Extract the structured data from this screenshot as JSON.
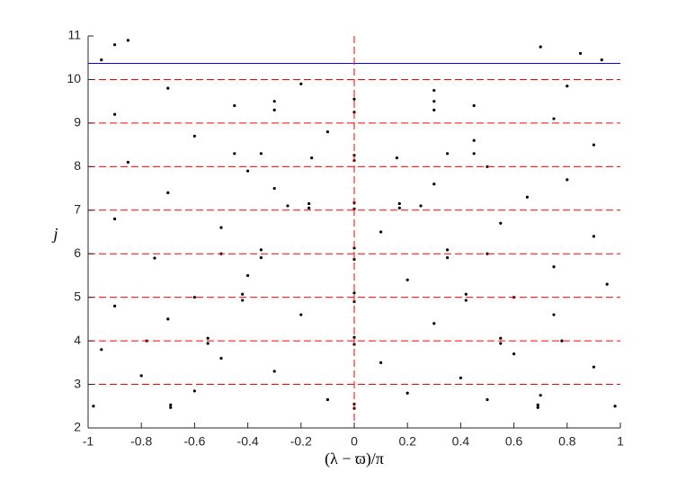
{
  "chart_data": {
    "type": "scatter",
    "xlabel": "(λ − ϖ)/π",
    "ylabel": "j",
    "xlim": [
      -1,
      1
    ],
    "ylim": [
      2,
      11
    ],
    "xticks": [
      -1,
      -0.8,
      -0.6,
      -0.4,
      -0.2,
      0,
      0.2,
      0.4,
      0.6,
      0.8,
      1
    ],
    "yticks": [
      2,
      3,
      4,
      5,
      6,
      7,
      8,
      9,
      10,
      11
    ],
    "grid": false,
    "series": [
      {
        "color": "#000000",
        "x": [
          -0.9,
          -0.85,
          0.7,
          0.85,
          -0.95,
          0.93,
          -0.7,
          -0.2,
          0.3,
          0.8,
          -0.9,
          0.75,
          -0.6,
          -0.1,
          0.45,
          0.9,
          -0.85,
          -0.4,
          0.5,
          0.8,
          -0.7,
          -0.3,
          0.3,
          0.65,
          -0.9,
          -0.5,
          0.1,
          0.55,
          0.9,
          -0.75,
          0.75,
          -0.4,
          0.2,
          0.95,
          -0.9,
          -0.7,
          0.75,
          0.3,
          -0.2,
          -0.95,
          -0.5,
          0.1,
          0.6,
          0.9,
          -0.8,
          -0.3,
          0.4,
          -0.6,
          0.2,
          0.7,
          -0.1,
          0.5,
          -0.98,
          0.98,
          0,
          0,
          -0.69,
          0.69,
          -0.69,
          0.69,
          -0.78,
          0.78,
          0,
          0,
          -0.55,
          0.55,
          -0.55,
          0.55,
          -0.6,
          0.6,
          0,
          0,
          -0.42,
          0.42,
          -0.42,
          0.42,
          -0.5,
          0.5,
          0,
          0,
          -0.35,
          0.35,
          -0.35,
          0.35,
          -0.25,
          0.25,
          0,
          0,
          -0.17,
          0.17,
          -0.17,
          0.17,
          -0.16,
          0.16,
          0,
          0,
          -0.35,
          0.35,
          -0.45,
          0.45,
          -0.45,
          0.45,
          0,
          0,
          -0.3,
          0.3,
          -0.3,
          0.3
        ],
        "y": [
          10.8,
          10.9,
          10.75,
          10.6,
          10.45,
          10.45,
          9.8,
          9.9,
          9.75,
          9.85,
          9.2,
          9.1,
          8.7,
          8.8,
          8.6,
          8.5,
          8.1,
          7.9,
          8.0,
          7.7,
          7.4,
          7.5,
          7.6,
          7.3,
          6.8,
          6.6,
          6.5,
          6.7,
          6.4,
          5.9,
          5.7,
          5.5,
          5.4,
          5.3,
          4.8,
          4.5,
          4.6,
          4.4,
          4.6,
          3.8,
          3.6,
          3.5,
          3.7,
          3.4,
          3.2,
          3.3,
          3.15,
          2.85,
          2.8,
          2.75,
          2.65,
          2.65,
          2.5,
          2.5,
          2.55,
          2.45,
          2.53,
          2.53,
          2.47,
          2.47,
          4.0,
          4.0,
          4.08,
          3.92,
          4.06,
          4.06,
          3.94,
          3.94,
          5.0,
          5.0,
          5.1,
          4.9,
          5.07,
          5.07,
          4.93,
          4.93,
          6.0,
          6.0,
          6.13,
          5.87,
          6.09,
          6.09,
          5.91,
          5.91,
          7.1,
          7.1,
          7.17,
          7.03,
          7.15,
          7.15,
          7.05,
          7.05,
          8.2,
          8.2,
          8.26,
          8.14,
          8.3,
          8.3,
          8.3,
          8.3,
          9.4,
          9.4,
          9.55,
          9.25,
          9.5,
          9.5,
          9.3,
          9.3
        ]
      }
    ],
    "reference_lines": [
      {
        "axis": "y",
        "value": 10.37,
        "color": "#0000ff",
        "style": "solid"
      },
      {
        "axis": "y",
        "value": 3,
        "color": "#ff0000",
        "style": "dashed"
      },
      {
        "axis": "y",
        "value": 4,
        "color": "#ff0000",
        "style": "dashed"
      },
      {
        "axis": "y",
        "value": 5,
        "color": "#ff0000",
        "style": "dashed"
      },
      {
        "axis": "y",
        "value": 6,
        "color": "#ff0000",
        "style": "dashed"
      },
      {
        "axis": "y",
        "value": 7,
        "color": "#ff0000",
        "style": "dashed"
      },
      {
        "axis": "y",
        "value": 8,
        "color": "#ff0000",
        "style": "dashed"
      },
      {
        "axis": "y",
        "value": 9,
        "color": "#ff0000",
        "style": "dashed"
      },
      {
        "axis": "y",
        "value": 10,
        "color": "#ff0000",
        "style": "dashed"
      },
      {
        "axis": "x",
        "value": 0,
        "color": "#ff0000",
        "style": "dashed"
      }
    ]
  }
}
